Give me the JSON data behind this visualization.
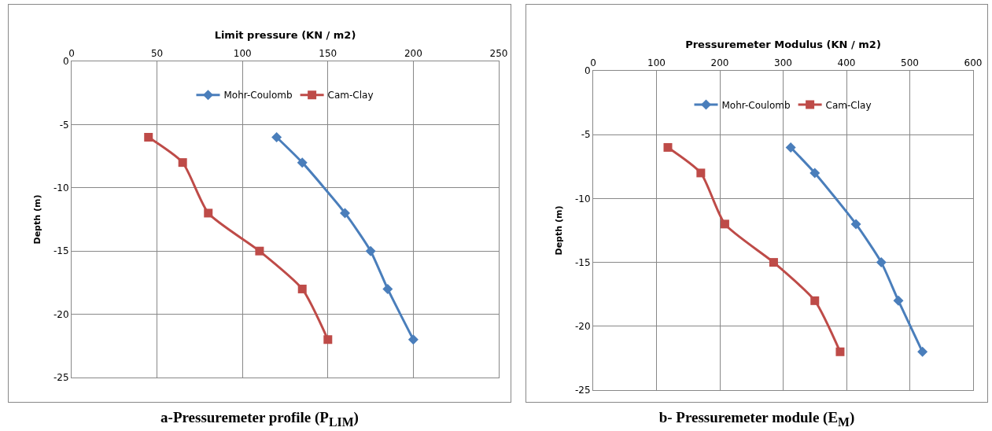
{
  "chart_data": [
    {
      "type": "line",
      "xlabel": "Limit pressure (KN / m2)",
      "ylabel": "Depth (m)",
      "annotations": [
        "a-Pressuremeter profile (P$_{LIM}$)"
      ],
      "xlim": [
        0,
        250
      ],
      "xticks": [
        0,
        50,
        100,
        150,
        200,
        250
      ],
      "ylim": [
        -25,
        0
      ],
      "yticks": [
        -25,
        -20,
        -15,
        -10,
        -5,
        0
      ],
      "grid": true,
      "legend": "top",
      "series": [
        {
          "name": "Mohr-Coulomb",
          "color": "#4a7ebb",
          "marker": "diamond",
          "x": [
            120,
            135,
            160,
            175,
            185,
            200
          ],
          "values": [
            -6,
            -8,
            -12,
            -15,
            -18,
            -22
          ]
        },
        {
          "name": "Cam-Clay",
          "color": "#be4b48",
          "marker": "square",
          "x": [
            45,
            65,
            80,
            110,
            135,
            150
          ],
          "values": [
            -6,
            -8,
            -12,
            -15,
            -18,
            -22
          ]
        }
      ]
    },
    {
      "type": "line",
      "xlabel": "Pressuremeter Modulus (KN / m2)",
      "ylabel": "Depth (m)",
      "annotations": [
        "b- Pressuremeter module (E$_{M}$)"
      ],
      "xlim": [
        0,
        600
      ],
      "xticks": [
        0,
        100,
        200,
        300,
        400,
        500,
        600
      ],
      "ylim": [
        -25,
        0
      ],
      "yticks": [
        -25,
        -20,
        -15,
        -10,
        -5,
        0
      ],
      "grid": true,
      "legend": "top",
      "series": [
        {
          "name": "Mohr-Coulomb",
          "color": "#4a7ebb",
          "marker": "diamond",
          "x": [
            312,
            350,
            415,
            455,
            482,
            520
          ],
          "values": [
            -6,
            -8,
            -12,
            -15,
            -18,
            -22
          ]
        },
        {
          "name": "Cam-Clay",
          "color": "#be4b48",
          "marker": "square",
          "x": [
            118,
            170,
            208,
            285,
            350,
            390
          ],
          "values": [
            -6,
            -8,
            -12,
            -15,
            -18,
            -22
          ]
        }
      ]
    }
  ]
}
